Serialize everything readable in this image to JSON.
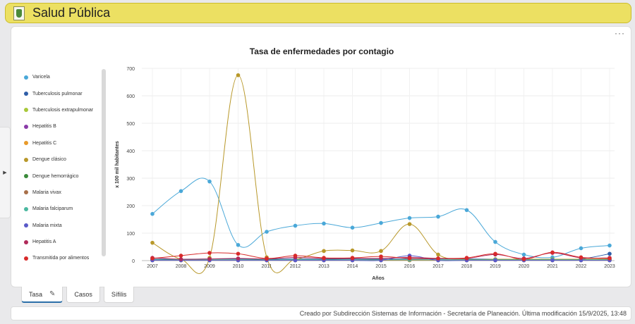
{
  "header": {
    "title": "Salud Pública"
  },
  "card": {
    "more_label": "···"
  },
  "tabs": [
    {
      "label": "Tasa",
      "active": true
    },
    {
      "label": "Casos",
      "active": false
    },
    {
      "label": "Sífilis",
      "active": false
    }
  ],
  "footer": {
    "text": "Creado por Subdirección Sistemas de Información - Secretaría de Planeación. Última modificación 15/9/2025, 13:48"
  },
  "chart_data": {
    "type": "line",
    "title": "Tasa de enfermedades por contagio",
    "xlabel": "Años",
    "ylabel": "x 100 mil habitantes",
    "ylim": [
      0,
      700
    ],
    "yticks": [
      0,
      100,
      200,
      300,
      400,
      500,
      600,
      700
    ],
    "x": [
      "2007",
      "2008",
      "2009",
      "2010",
      "2011",
      "2012",
      "2013",
      "2014",
      "2015",
      "2016",
      "2017",
      "2018",
      "2019",
      "2020",
      "2021",
      "2022",
      "2023"
    ],
    "grid": true,
    "legend_position": "left",
    "series": [
      {
        "name": "Varicela",
        "color": "#4aa8d8",
        "values": [
          170,
          253,
          288,
          57,
          105,
          127,
          135,
          120,
          137,
          155,
          160,
          184,
          68,
          22,
          12,
          45,
          55
        ]
      },
      {
        "name": "Tuberculosis pulmonar",
        "color": "#2f5ea8",
        "values": [
          5,
          5,
          6,
          6,
          5,
          6,
          5,
          6,
          5,
          6,
          6,
          6,
          5,
          5,
          5,
          6,
          25
        ]
      },
      {
        "name": "Tuberculosis extrapulmonar",
        "color": "#a8c83a",
        "values": [
          2,
          2,
          2,
          2,
          2,
          2,
          2,
          2,
          2,
          2,
          2,
          2,
          2,
          2,
          2,
          2,
          2
        ]
      },
      {
        "name": "Hepatitis B",
        "color": "#8a3aa8",
        "values": [
          2,
          2,
          2,
          2,
          2,
          2,
          2,
          2,
          2,
          2,
          2,
          2,
          2,
          2,
          2,
          2,
          2
        ]
      },
      {
        "name": "Hepatitis C",
        "color": "#e89a2a",
        "values": [
          1,
          1,
          1,
          1,
          1,
          1,
          1,
          1,
          1,
          1,
          1,
          1,
          1,
          1,
          1,
          1,
          1
        ]
      },
      {
        "name": "Dengue clásico",
        "color": "#b8982a",
        "values": [
          65,
          5,
          10,
          675,
          12,
          5,
          35,
          37,
          35,
          133,
          22,
          5,
          5,
          5,
          5,
          5,
          5
        ]
      },
      {
        "name": "Dengue hemorrágico",
        "color": "#3a8a3a",
        "values": [
          3,
          3,
          3,
          3,
          3,
          3,
          3,
          3,
          3,
          3,
          3,
          3,
          3,
          3,
          3,
          3,
          3
        ]
      },
      {
        "name": "Malaria vivax",
        "color": "#a8704a",
        "values": [
          2,
          2,
          2,
          2,
          2,
          2,
          2,
          2,
          2,
          2,
          2,
          2,
          2,
          2,
          2,
          2,
          2
        ]
      },
      {
        "name": "Malaria falciparum",
        "color": "#4ab8a0",
        "values": [
          3,
          3,
          3,
          3,
          3,
          3,
          3,
          3,
          3,
          3,
          3,
          3,
          3,
          3,
          3,
          3,
          3
        ]
      },
      {
        "name": "Malaria mixta",
        "color": "#5a5ac8",
        "values": [
          1,
          1,
          1,
          1,
          1,
          1,
          1,
          1,
          1,
          18,
          1,
          1,
          1,
          1,
          1,
          1,
          1
        ]
      },
      {
        "name": "Hepatitis A",
        "color": "#b02a5a",
        "values": [
          10,
          5,
          6,
          8,
          6,
          12,
          8,
          8,
          8,
          12,
          8,
          8,
          22,
          8,
          28,
          10,
          10
        ]
      },
      {
        "name": "Transmitida por alimentos",
        "color": "#d82a2a",
        "values": [
          8,
          18,
          28,
          25,
          8,
          18,
          10,
          10,
          15,
          8,
          8,
          10,
          25,
          5,
          30,
          12,
          8
        ]
      }
    ]
  }
}
